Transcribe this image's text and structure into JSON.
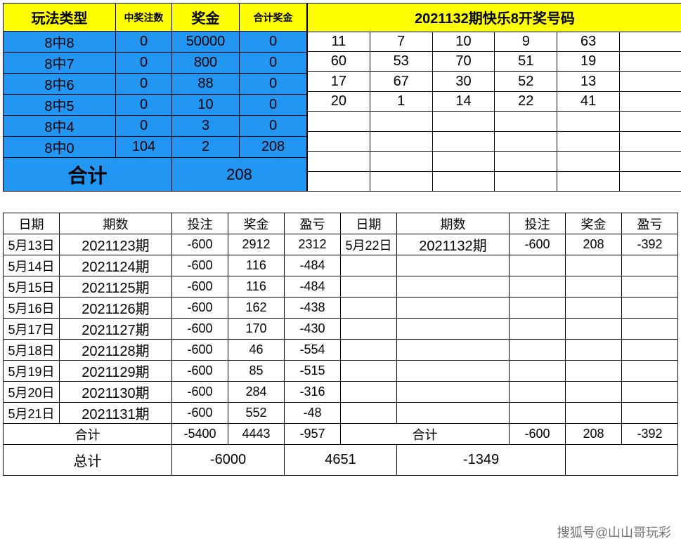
{
  "colors": {
    "yellow": "#ffff00",
    "blue": "#2196f3",
    "border": "#000000",
    "bg": "#ffffff"
  },
  "prize": {
    "headers": {
      "type": "玩法类型",
      "count": "中奖注数",
      "amount": "奖金",
      "total": "合计奖金"
    },
    "rows": [
      {
        "type": "8中8",
        "count": "0",
        "amount": "50000",
        "total": "0"
      },
      {
        "type": "8中7",
        "count": "0",
        "amount": "800",
        "total": "0"
      },
      {
        "type": "8中6",
        "count": "0",
        "amount": "88",
        "total": "0"
      },
      {
        "type": "8中5",
        "count": "0",
        "amount": "10",
        "total": "0"
      },
      {
        "type": "8中4",
        "count": "0",
        "amount": "3",
        "total": "0"
      },
      {
        "type": "8中0",
        "count": "104",
        "amount": "2",
        "total": "208"
      }
    ],
    "sum_label": "合计",
    "sum_value": "208"
  },
  "draw": {
    "title": "2021132期快乐8开奖号码",
    "grid": [
      [
        "11",
        "7",
        "10",
        "9",
        "63",
        ""
      ],
      [
        "60",
        "53",
        "70",
        "51",
        "19",
        ""
      ],
      [
        "17",
        "67",
        "30",
        "52",
        "13",
        ""
      ],
      [
        "20",
        "1",
        "14",
        "22",
        "41",
        ""
      ],
      [
        "",
        "",
        "",
        "",
        "",
        ""
      ],
      [
        "",
        "",
        "",
        "",
        "",
        ""
      ],
      [
        "",
        "",
        "",
        "",
        "",
        ""
      ],
      [
        "",
        "",
        "",
        "",
        "",
        ""
      ]
    ]
  },
  "history": {
    "headers": {
      "date": "日期",
      "period": "期数",
      "bet": "投注",
      "prize": "奖金",
      "pl": "盈亏"
    },
    "left": [
      {
        "date": "5月13日",
        "period": "2021123期",
        "bet": "-600",
        "prize": "2912",
        "pl": "2312"
      },
      {
        "date": "5月14日",
        "period": "2021124期",
        "bet": "-600",
        "prize": "116",
        "pl": "-484"
      },
      {
        "date": "5月15日",
        "period": "2021125期",
        "bet": "-600",
        "prize": "116",
        "pl": "-484"
      },
      {
        "date": "5月16日",
        "period": "2021126期",
        "bet": "-600",
        "prize": "162",
        "pl": "-438"
      },
      {
        "date": "5月17日",
        "period": "2021127期",
        "bet": "-600",
        "prize": "170",
        "pl": "-430"
      },
      {
        "date": "5月18日",
        "period": "2021128期",
        "bet": "-600",
        "prize": "46",
        "pl": "-554"
      },
      {
        "date": "5月19日",
        "period": "2021129期",
        "bet": "-600",
        "prize": "85",
        "pl": "-515"
      },
      {
        "date": "5月20日",
        "period": "2021130期",
        "bet": "-600",
        "prize": "284",
        "pl": "-316"
      },
      {
        "date": "5月21日",
        "period": "2021131期",
        "bet": "-600",
        "prize": "552",
        "pl": "-48"
      }
    ],
    "right": [
      {
        "date": "5月22日",
        "period": "2021132期",
        "bet": "-600",
        "prize": "208",
        "pl": "-392"
      }
    ],
    "subtotal_label": "合计",
    "left_subtotal": {
      "bet": "-5400",
      "prize": "4443",
      "pl": "-957"
    },
    "right_subtotal": {
      "bet": "-600",
      "prize": "208",
      "pl": "-392"
    },
    "grand_label": "总计",
    "grand": {
      "bet": "-6000",
      "prize": "4651",
      "pl": "-1349"
    }
  },
  "watermark": "搜狐号@山山哥玩彩"
}
